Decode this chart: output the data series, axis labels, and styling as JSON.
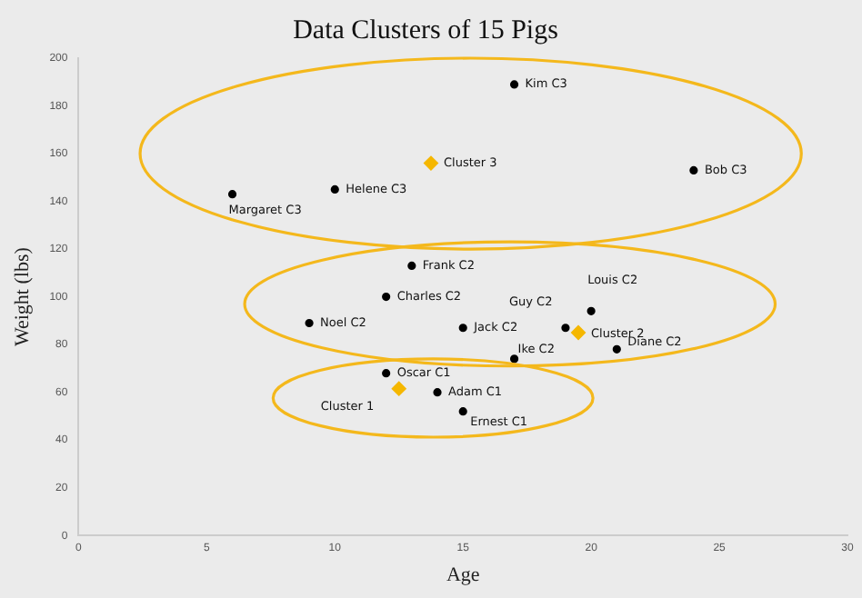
{
  "chart_data": {
    "type": "scatter",
    "title": "Data Clusters of 15 Pigs",
    "xlabel": "Age",
    "ylabel": "Weight (lbs)",
    "xlim": [
      0,
      30
    ],
    "xticks": [
      0,
      5,
      10,
      15,
      20,
      25,
      30
    ],
    "ylim": [
      0,
      200
    ],
    "yticks": [
      0,
      20,
      40,
      60,
      80,
      100,
      120,
      140,
      160,
      180,
      200
    ],
    "grid": false,
    "legend": false,
    "series": [
      {
        "color": "#000000",
        "marker": "circle",
        "x": [
          17,
          24,
          6,
          10,
          13,
          12,
          9,
          15,
          19,
          20,
          17,
          21,
          12,
          14,
          15
        ],
        "values": [
          189,
          153,
          143,
          145,
          113,
          100,
          89,
          87,
          87,
          94,
          74,
          78,
          68,
          60,
          52
        ]
      },
      {
        "color": "#f5b700",
        "marker": "diamond",
        "x": [
          13.75,
          19.5,
          12.5
        ],
        "values": [
          156,
          85,
          61.5
        ]
      }
    ],
    "annotations": [
      {
        "text": "Kim C3",
        "x": 17,
        "y": 189
      },
      {
        "text": "Bob C3",
        "x": 24,
        "y": 153
      },
      {
        "text": "Margaret C3",
        "x": 6,
        "y": 143
      },
      {
        "text": "Helene C3",
        "x": 10,
        "y": 145
      },
      {
        "text": "Frank C2",
        "x": 13,
        "y": 113
      },
      {
        "text": "Charles C2",
        "x": 12,
        "y": 100
      },
      {
        "text": "Noel C2",
        "x": 9,
        "y": 89
      },
      {
        "text": "Jack C2",
        "x": 15,
        "y": 87
      },
      {
        "text": "Guy C2",
        "x": 19,
        "y": 87
      },
      {
        "text": "Louis C2",
        "x": 20,
        "y": 94
      },
      {
        "text": "Ike C2",
        "x": 17,
        "y": 74
      },
      {
        "text": "Diane C2",
        "x": 21,
        "y": 78
      },
      {
        "text": "Oscar C1",
        "x": 12,
        "y": 68
      },
      {
        "text": "Adam C1",
        "x": 14,
        "y": 60
      },
      {
        "text": "Ernest C1",
        "x": 15,
        "y": 52
      },
      {
        "text": "Cluster 3",
        "x": 13.75,
        "y": 156
      },
      {
        "text": "Cluster 2",
        "x": 19.5,
        "y": 85
      },
      {
        "text": "Cluster 1",
        "x": 12.5,
        "y": 61.5
      }
    ]
  }
}
